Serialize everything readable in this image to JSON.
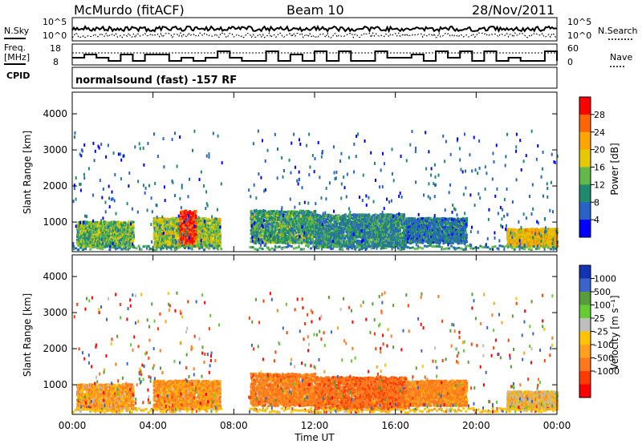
{
  "header": {
    "site_title": "McMurdo (fitACF)",
    "beam": "Beam 10",
    "date": "28/Nov/2011"
  },
  "noise_panel": {
    "left_label": "N.Sky",
    "left_ticks": [
      "10^5",
      "10^0"
    ],
    "right_ticks": [
      "10^5",
      "10^0"
    ],
    "right_label": "N.Search"
  },
  "freq_panel": {
    "left_label_1": "Freq.",
    "left_label_2": "[MHz]",
    "left_ticks": [
      "18",
      "8"
    ],
    "right_ticks": [
      "60",
      "0"
    ],
    "right_label": "Nave"
  },
  "cpid_panel": {
    "label": "CPID",
    "program": "normalsound (fast) -157 RF"
  },
  "x_axis": {
    "ticks": [
      "00:00",
      "04:00",
      "08:00",
      "12:00",
      "16:00",
      "20:00",
      "00:00"
    ],
    "label": "Time UT"
  },
  "chart_data": [
    {
      "type": "heatmap",
      "name": "power",
      "ylabel": "Slant Range [km]",
      "y_ticks": [
        "1000",
        "2000",
        "3000",
        "4000"
      ],
      "ylim": [
        180,
        4600
      ],
      "xlim_hours": [
        0,
        24
      ],
      "colorbar_label": "Power [dB]",
      "colorbar_ticks": [
        "28",
        "24",
        "20",
        "16",
        "12",
        "8",
        "4"
      ],
      "colorbar_colors": [
        "#ff0000",
        "#ff6600",
        "#ffa500",
        "#e6c800",
        "#62b84a",
        "#1f8a6e",
        "#2a63c6",
        "#0000ff"
      ],
      "echo_regions": [
        {
          "t_start": 0.2,
          "t_end": 3.0,
          "r_min": 300,
          "r_max": 1000,
          "power_db": 14
        },
        {
          "t_start": 4.0,
          "t_end": 7.3,
          "r_min": 300,
          "r_max": 1100,
          "power_db": 16
        },
        {
          "t_start": 5.3,
          "t_end": 6.1,
          "r_min": 350,
          "r_max": 1300,
          "power_db": 28
        },
        {
          "t_start": 8.8,
          "t_end": 12.0,
          "r_min": 400,
          "r_max": 1300,
          "power_db": 12
        },
        {
          "t_start": 12.0,
          "t_end": 16.5,
          "r_min": 300,
          "r_max": 1200,
          "power_db": 10
        },
        {
          "t_start": 16.5,
          "t_end": 19.5,
          "r_min": 400,
          "r_max": 1100,
          "power_db": 8
        },
        {
          "t_start": 21.5,
          "t_end": 24.0,
          "r_min": 300,
          "r_max": 800,
          "power_db": 20
        }
      ]
    },
    {
      "type": "heatmap",
      "name": "velocity",
      "ylabel": "Slant Range [km]",
      "y_ticks": [
        "1000",
        "2000",
        "3000",
        "4000"
      ],
      "ylim": [
        180,
        4600
      ],
      "xlim_hours": [
        0,
        24
      ],
      "colorbar_label": "Velocity [m s⁻¹]",
      "colorbar_ticks": [
        "1000",
        "500",
        "100",
        "25",
        "-25",
        "-100",
        "-500",
        "-1000"
      ],
      "colorbar_colors": [
        "#1432b4",
        "#3c64c8",
        "#5a9b3c",
        "#66cc33",
        "#bebebe",
        "#ffc300",
        "#ffa01e",
        "#ff781e",
        "#ff3c00",
        "#ff0000"
      ],
      "echo_regions": [
        {
          "t_start": 0.2,
          "t_end": 3.0,
          "r_min": 300,
          "r_max": 1000,
          "velocity": -60
        },
        {
          "t_start": 4.0,
          "t_end": 7.3,
          "r_min": 300,
          "r_max": 1100,
          "velocity": -80
        },
        {
          "t_start": 8.8,
          "t_end": 12.0,
          "r_min": 400,
          "r_max": 1300,
          "velocity": -150
        },
        {
          "t_start": 12.0,
          "t_end": 16.5,
          "r_min": 300,
          "r_max": 1200,
          "velocity": -200
        },
        {
          "t_start": 16.5,
          "t_end": 19.5,
          "r_min": 400,
          "r_max": 1100,
          "velocity": -120
        },
        {
          "t_start": 21.5,
          "t_end": 24.0,
          "r_min": 300,
          "r_max": 800,
          "velocity": 0
        }
      ]
    }
  ]
}
